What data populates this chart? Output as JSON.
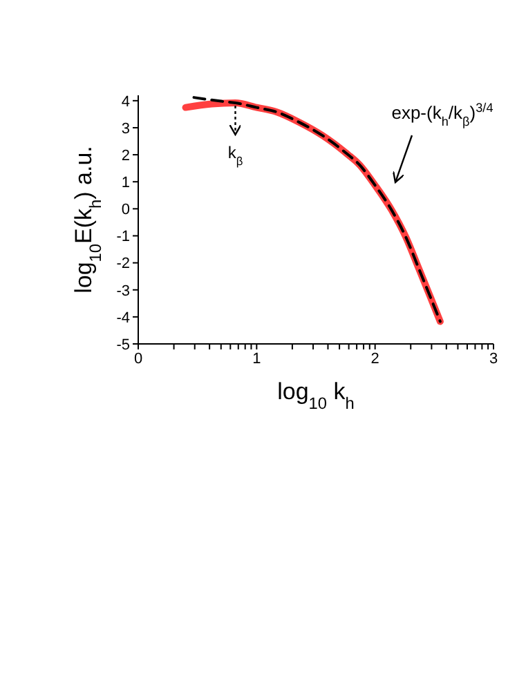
{
  "chart_data": {
    "type": "line",
    "xlabel": "log$_{10}$ k$_{h}$",
    "ylabel": "log$_{10}$E(k$_{h}$)   a.u.",
    "series": [
      {
        "color": "#ff4040",
        "line_style": "solid",
        "x": [
          0.4,
          0.62,
          0.82,
          1.0,
          1.17,
          1.36,
          1.56,
          1.75,
          1.87,
          2.0,
          2.14,
          2.26,
          2.37,
          2.47,
          2.55
        ],
        "values": [
          3.75,
          3.88,
          3.92,
          3.75,
          3.58,
          3.2,
          2.7,
          2.08,
          1.62,
          0.87,
          -0.05,
          -1.05,
          -2.22,
          -3.3,
          -4.17
        ]
      },
      {
        "color": "#000000",
        "line_style": "dashed",
        "x": [
          0.47,
          0.7,
          0.82,
          1.0,
          1.17,
          1.36,
          1.56,
          1.75,
          1.87,
          2.0,
          2.14,
          2.26,
          2.37,
          2.47,
          2.55
        ],
        "values": [
          4.12,
          3.98,
          3.92,
          3.75,
          3.58,
          3.2,
          2.7,
          2.08,
          1.62,
          0.87,
          -0.05,
          -1.05,
          -2.22,
          -3.3,
          -4.17
        ]
      }
    ],
    "xlim": [
      0,
      3
    ],
    "xticks": [
      0,
      {
        "value": 0.301,
        "label": null
      },
      {
        "value": 0.477,
        "label": null
      },
      {
        "value": 0.602,
        "label": null
      },
      {
        "value": 0.699,
        "label": null
      },
      {
        "value": 0.778,
        "label": null
      },
      {
        "value": 0.845,
        "label": null
      },
      {
        "value": 0.903,
        "label": null
      },
      {
        "value": 0.954,
        "label": null
      },
      1,
      {
        "value": 1.301,
        "label": null
      },
      {
        "value": 1.477,
        "label": null
      },
      {
        "value": 1.602,
        "label": null
      },
      {
        "value": 1.699,
        "label": null
      },
      {
        "value": 1.778,
        "label": null
      },
      {
        "value": 1.845,
        "label": null
      },
      {
        "value": 1.903,
        "label": null
      },
      {
        "value": 1.954,
        "label": null
      },
      2,
      {
        "value": 2.301,
        "label": null
      },
      {
        "value": 2.477,
        "label": null
      },
      {
        "value": 2.602,
        "label": null
      },
      {
        "value": 2.699,
        "label": null
      },
      {
        "value": 2.778,
        "label": null
      },
      {
        "value": 2.845,
        "label": null
      },
      {
        "value": 2.903,
        "label": null
      },
      {
        "value": 2.954,
        "label": null
      },
      3
    ],
    "ylim": [
      -5,
      4.2
    ],
    "yticks": [
      -5,
      -4,
      -3,
      -2,
      -1,
      0,
      1,
      2,
      3,
      4
    ],
    "grid": false,
    "legend": false,
    "annotations": [
      {
        "text": "k$_{β}$",
        "x": 0.82,
        "y": 3.92
      },
      "exp-(k$_{h}$/k$_{β}$)$^{3/4}$"
    ]
  }
}
